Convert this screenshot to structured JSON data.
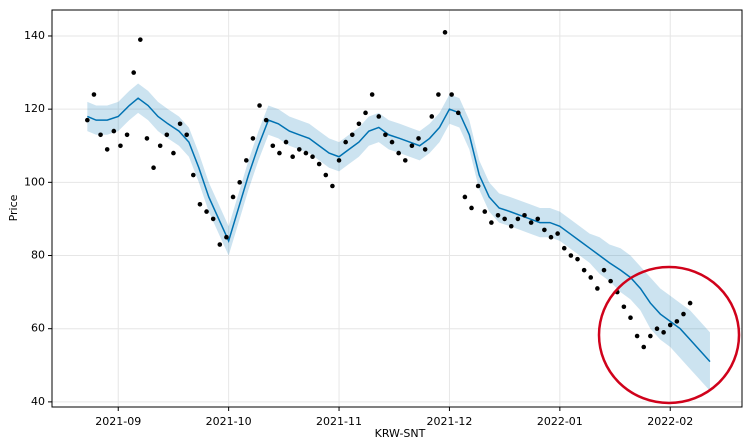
{
  "chart_data": {
    "type": "forecast",
    "xlabel": "KRW-SNT",
    "ylabel": "Price",
    "xlim": [
      8.4,
      14.65
    ],
    "ylim": [
      38.6,
      147.1
    ],
    "xticks": [
      {
        "value": 9,
        "label": "2021-09"
      },
      {
        "value": 10,
        "label": "2021-10"
      },
      {
        "value": 11,
        "label": "2021-11"
      },
      {
        "value": 12,
        "label": "2021-12"
      },
      {
        "value": 13,
        "label": "2022-01"
      },
      {
        "value": 14,
        "label": "2022-02"
      }
    ],
    "yticks": [
      40,
      60,
      80,
      100,
      120,
      140
    ],
    "grid": true,
    "x": [
      8.72,
      8.8,
      8.9,
      9.0,
      9.1,
      9.18,
      9.27,
      9.36,
      9.45,
      9.55,
      9.64,
      9.73,
      9.82,
      9.91,
      10.0,
      10.09,
      10.18,
      10.27,
      10.36,
      10.45,
      10.55,
      10.64,
      10.73,
      10.82,
      10.91,
      11.0,
      11.09,
      11.18,
      11.27,
      11.36,
      11.45,
      11.55,
      11.64,
      11.73,
      11.82,
      11.91,
      12.0,
      12.09,
      12.18,
      12.27,
      12.36,
      12.45,
      12.55,
      12.64,
      12.73,
      12.82,
      12.91,
      13.0,
      13.09,
      13.18,
      13.27,
      13.36,
      13.45,
      13.55,
      13.64,
      13.73,
      13.82,
      13.91,
      14.0,
      14.09,
      14.18,
      14.27,
      14.36
    ],
    "forecast": {
      "color": "#0072B2",
      "values": [
        118,
        117,
        117,
        118,
        121,
        123,
        121,
        118,
        116,
        114,
        111,
        104,
        96,
        90,
        84,
        93,
        102,
        110,
        117,
        116,
        114,
        113,
        112,
        110,
        108,
        107,
        109,
        111,
        114,
        115,
        113,
        112,
        111,
        110,
        112,
        115,
        120,
        119,
        113,
        102,
        96,
        93,
        92,
        91,
        90,
        89,
        89,
        88,
        86,
        84,
        82,
        80,
        78,
        76,
        74,
        71,
        67,
        64,
        62,
        60,
        57,
        54,
        51
      ],
      "lower": [
        114,
        113,
        113,
        114,
        117,
        119,
        117,
        114,
        112,
        110,
        107,
        100,
        92,
        86,
        80,
        89,
        98,
        106,
        113,
        112,
        110,
        109,
        108,
        106,
        104,
        103,
        105,
        107,
        110,
        111,
        109,
        108,
        107,
        106,
        108,
        111,
        116,
        115,
        109,
        98,
        92,
        89,
        88,
        87,
        86,
        85,
        85,
        84,
        82,
        80,
        78,
        75,
        73,
        70,
        68,
        65,
        60,
        57,
        55,
        52,
        49,
        46,
        43
      ],
      "upper": [
        122,
        121,
        121,
        122,
        125,
        127,
        125,
        122,
        120,
        118,
        115,
        108,
        100,
        94,
        88,
        97,
        106,
        114,
        121,
        120,
        118,
        117,
        116,
        114,
        112,
        111,
        113,
        115,
        118,
        119,
        117,
        116,
        115,
        114,
        116,
        119,
        124,
        123,
        117,
        106,
        100,
        97,
        96,
        95,
        94,
        93,
        93,
        92,
        90,
        88,
        86,
        85,
        83,
        82,
        80,
        77,
        74,
        71,
        69,
        67,
        65,
        62,
        59
      ]
    },
    "points": {
      "color": "#000000",
      "x": [
        8.72,
        8.78,
        8.84,
        8.9,
        8.96,
        9.02,
        9.08,
        9.14,
        9.2,
        9.26,
        9.32,
        9.38,
        9.44,
        9.5,
        9.56,
        9.62,
        9.68,
        9.74,
        9.8,
        9.86,
        9.92,
        9.98,
        10.04,
        10.1,
        10.16,
        10.22,
        10.28,
        10.34,
        10.4,
        10.46,
        10.52,
        10.58,
        10.64,
        10.7,
        10.76,
        10.82,
        10.88,
        10.94,
        11.0,
        11.06,
        11.12,
        11.18,
        11.24,
        11.3,
        11.36,
        11.42,
        11.48,
        11.54,
        11.6,
        11.66,
        11.72,
        11.78,
        11.84,
        11.9,
        11.96,
        12.02,
        12.08,
        12.14,
        12.2,
        12.26,
        12.32,
        12.38,
        12.44,
        12.5,
        12.56,
        12.62,
        12.68,
        12.74,
        12.8,
        12.86,
        12.92,
        12.98,
        13.04,
        13.1,
        13.16,
        13.22,
        13.28,
        13.34,
        13.4,
        13.46,
        13.52,
        13.58,
        13.64,
        13.7,
        13.76,
        13.82,
        13.88,
        13.94,
        14.0,
        14.06,
        14.12,
        14.18
      ],
      "values": [
        117,
        124,
        113,
        109,
        114,
        110,
        113,
        130,
        139,
        112,
        104,
        110,
        113,
        108,
        116,
        113,
        102,
        94,
        92,
        90,
        83,
        85,
        96,
        100,
        106,
        112,
        121,
        117,
        110,
        108,
        111,
        107,
        109,
        108,
        107,
        105,
        102,
        99,
        106,
        111,
        113,
        116,
        119,
        124,
        118,
        113,
        111,
        108,
        106,
        110,
        112,
        109,
        118,
        124,
        141,
        124,
        119,
        96,
        93,
        99,
        92,
        89,
        91,
        90,
        88,
        90,
        91,
        89,
        90,
        87,
        85,
        86,
        82,
        80,
        79,
        76,
        74,
        71,
        76,
        73,
        70,
        66,
        63,
        58,
        55,
        58,
        60,
        59,
        61,
        62,
        64,
        67
      ]
    }
  }
}
